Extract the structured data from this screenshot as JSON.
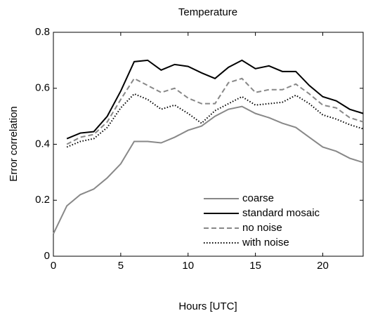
{
  "chart_data": {
    "type": "line",
    "title": "Temperature",
    "x_label": "Hours [UTC]",
    "y_label": "Error correlation",
    "x": [
      0,
      1,
      2,
      3,
      4,
      5,
      6,
      7,
      8,
      9,
      10,
      11,
      12,
      13,
      14,
      15,
      16,
      17,
      18,
      19,
      20,
      21,
      22,
      23
    ],
    "series": [
      {
        "name": "coarse",
        "color": "#888888",
        "style": "solid",
        "values": [
          0.08,
          0.18,
          0.22,
          0.24,
          0.28,
          0.33,
          0.41,
          0.41,
          0.405,
          0.425,
          0.45,
          0.465,
          0.5,
          0.525,
          0.535,
          0.51,
          0.495,
          0.475,
          0.46,
          0.425,
          0.39,
          0.375,
          0.35,
          0.335
        ]
      },
      {
        "name": "standard mosaic",
        "color": "#000000",
        "style": "solid",
        "values": [
          null,
          0.42,
          0.44,
          0.445,
          0.5,
          0.59,
          0.695,
          0.7,
          0.665,
          0.685,
          0.678,
          0.655,
          0.635,
          0.675,
          0.7,
          0.67,
          0.68,
          0.66,
          0.66,
          0.61,
          0.57,
          0.555,
          0.525,
          0.51
        ]
      },
      {
        "name": "no noise",
        "color": "#888888",
        "style": "dashed",
        "values": [
          null,
          0.4,
          0.425,
          0.435,
          0.48,
          0.56,
          0.635,
          0.61,
          0.585,
          0.6,
          0.565,
          0.545,
          0.545,
          0.62,
          0.635,
          0.585,
          0.595,
          0.595,
          0.615,
          0.58,
          0.54,
          0.53,
          0.495,
          0.48
        ]
      },
      {
        "name": "with noise",
        "color": "#000000",
        "style": "dotted",
        "values": [
          null,
          0.39,
          0.41,
          0.42,
          0.46,
          0.53,
          0.58,
          0.56,
          0.525,
          0.54,
          0.51,
          0.475,
          0.52,
          0.545,
          0.57,
          0.54,
          0.545,
          0.55,
          0.575,
          0.545,
          0.505,
          0.49,
          0.47,
          0.455
        ]
      }
    ],
    "xlim": [
      0,
      23
    ],
    "xticks": [
      0,
      5,
      10,
      15,
      20
    ],
    "ylim": [
      0,
      0.8
    ],
    "yticks": [
      0,
      0.2,
      0.4,
      0.6,
      0.8
    ],
    "grid": false,
    "legend": "lower right"
  }
}
